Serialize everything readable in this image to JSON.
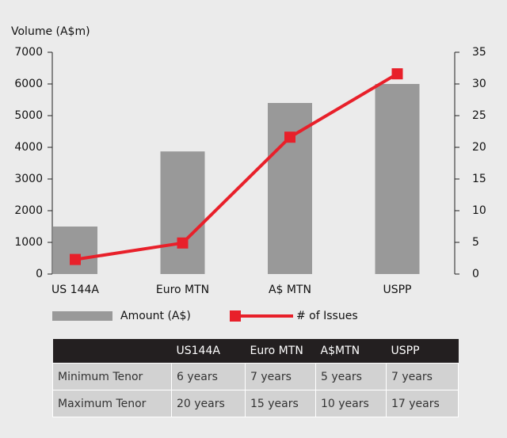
{
  "chart_data": {
    "type": "combo",
    "y_label": "Volume (A$m)",
    "categories": [
      "US 144A",
      "Euro MTN",
      "A$ MTN",
      "USPP"
    ],
    "series": [
      {
        "name": "Amount (A$)",
        "type": "bar",
        "color": "#999999",
        "values": [
          1500,
          3870,
          5400,
          6000
        ]
      },
      {
        "name": "# of Issues",
        "type": "line",
        "color": "#e8202a",
        "axis": "y2",
        "values": [
          2.3,
          4.9,
          21.6,
          31.6
        ]
      }
    ],
    "ylim": [
      0,
      7000
    ],
    "yticks": [
      0,
      1000,
      2000,
      3000,
      4000,
      5000,
      6000,
      7000
    ],
    "y2lim": [
      0,
      35
    ],
    "y2ticks": [
      0,
      5,
      10,
      15,
      20,
      25,
      30,
      35
    ]
  },
  "table": {
    "columns": [
      "US144A",
      "Euro MTN",
      "A$MTN",
      "USPP"
    ],
    "rows": [
      [
        "Minimum Tenor",
        "6 years",
        "7 years",
        "5 years",
        "7 years"
      ],
      [
        "Maximum Tenor",
        "20 years",
        "15 years",
        "10 years",
        "17 years"
      ]
    ]
  }
}
